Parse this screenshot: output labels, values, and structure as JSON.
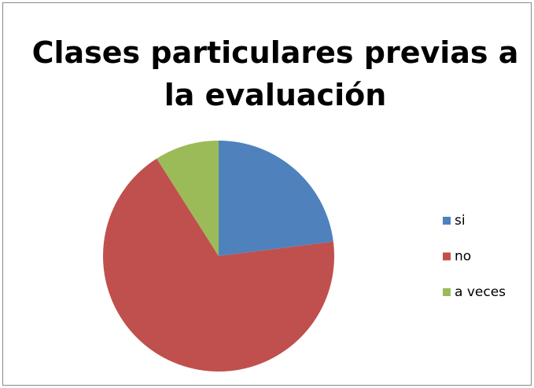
{
  "chart_data": {
    "type": "pie",
    "title": "Clases particulares previas a la evaluación",
    "categories": [
      "si",
      "no",
      "a veces"
    ],
    "values": [
      23,
      68,
      9
    ],
    "colors": [
      "#4f81bd",
      "#c0504d",
      "#9bbb59"
    ],
    "legend": "right"
  }
}
